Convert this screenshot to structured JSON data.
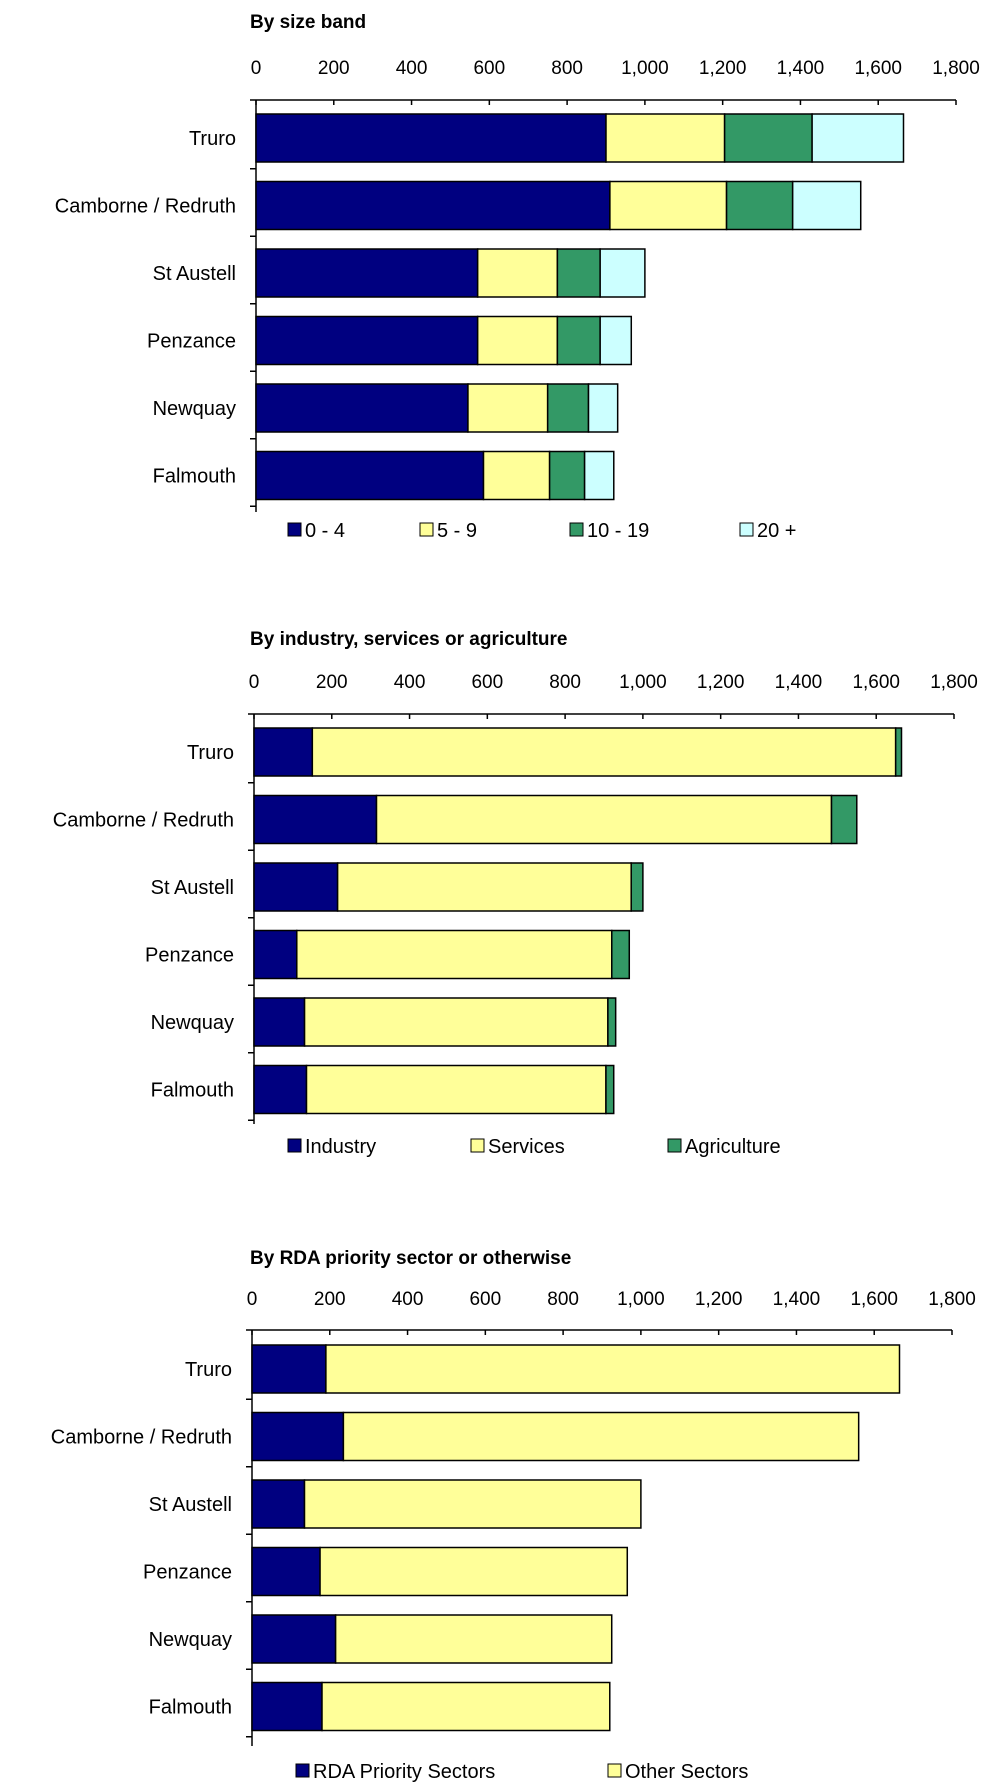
{
  "chart_data": [
    {
      "type": "bar",
      "orientation": "horizontal",
      "stacked": true,
      "title": "By size band",
      "categories": [
        "Truro",
        "Camborne / Redruth",
        "St Austell",
        "Penzance",
        "Newquay",
        "Falmouth"
      ],
      "series": [
        {
          "name": "0 - 4",
          "color": "#000080",
          "values": [
            900,
            910,
            570,
            570,
            545,
            585
          ]
        },
        {
          "name": "5 - 9",
          "color": "#ffff99",
          "values": [
            305,
            300,
            205,
            205,
            205,
            170
          ]
        },
        {
          "name": "10 - 19",
          "color": "#339966",
          "values": [
            225,
            170,
            110,
            110,
            105,
            90
          ]
        },
        {
          "name": "20 +",
          "color": "#ccffff",
          "values": [
            235,
            175,
            115,
            80,
            75,
            75
          ]
        }
      ],
      "xlim": [
        0,
        1800
      ],
      "ticks": [
        "0",
        "200",
        "400",
        "600",
        "800",
        "1,000",
        "1,200",
        "1,400",
        "1,600",
        "1,800"
      ],
      "legend_position": "bottom",
      "grid": false
    },
    {
      "type": "bar",
      "orientation": "horizontal",
      "stacked": true,
      "title": "By industry, services or agriculture",
      "categories": [
        "Truro",
        "Camborne / Redruth",
        "St Austell",
        "Penzance",
        "Newquay",
        "Falmouth"
      ],
      "series": [
        {
          "name": "Industry",
          "color": "#000080",
          "values": [
            150,
            315,
            215,
            110,
            130,
            135
          ]
        },
        {
          "name": "Services",
          "color": "#ffff99",
          "values": [
            1500,
            1170,
            755,
            810,
            780,
            770
          ]
        },
        {
          "name": "Agriculture",
          "color": "#339966",
          "values": [
            15,
            65,
            30,
            45,
            20,
            20
          ]
        }
      ],
      "xlim": [
        0,
        1800
      ],
      "ticks": [
        "0",
        "200",
        "400",
        "600",
        "800",
        "1,000",
        "1,200",
        "1,400",
        "1,600",
        "1,800"
      ],
      "legend_position": "bottom",
      "grid": false
    },
    {
      "type": "bar",
      "orientation": "horizontal",
      "stacked": true,
      "title": "By RDA priority sector or otherwise",
      "categories": [
        "Truro",
        "Camborne / Redruth",
        "St Austell",
        "Penzance",
        "Newquay",
        "Falmouth"
      ],
      "series": [
        {
          "name": "RDA Priority Sectors",
          "color": "#000080",
          "values": [
            190,
            235,
            135,
            175,
            215,
            180
          ]
        },
        {
          "name": "Other Sectors",
          "color": "#ffff99",
          "values": [
            1475,
            1325,
            865,
            790,
            710,
            740
          ]
        }
      ],
      "xlim": [
        0,
        1800
      ],
      "ticks": [
        "0",
        "200",
        "400",
        "600",
        "800",
        "1,000",
        "1,200",
        "1,400",
        "1,600",
        "1,800"
      ],
      "legend_position": "bottom",
      "grid": false
    }
  ]
}
